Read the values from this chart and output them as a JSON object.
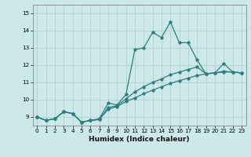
{
  "xlabel": "Humidex (Indice chaleur)",
  "x": [
    0,
    1,
    2,
    3,
    4,
    5,
    6,
    7,
    8,
    9,
    10,
    11,
    12,
    13,
    14,
    15,
    16,
    17,
    18,
    19,
    20,
    21,
    22,
    23
  ],
  "line_max": [
    9.0,
    8.8,
    8.9,
    9.3,
    9.2,
    8.7,
    8.8,
    8.9,
    9.8,
    9.7,
    10.3,
    12.9,
    13.0,
    13.9,
    13.6,
    14.5,
    13.3,
    13.3,
    12.3,
    11.5,
    11.55,
    12.1,
    11.6,
    11.55
  ],
  "line_avg": [
    9.0,
    8.8,
    8.9,
    9.3,
    9.2,
    8.7,
    8.8,
    8.85,
    9.55,
    9.65,
    10.05,
    10.45,
    10.75,
    11.0,
    11.2,
    11.45,
    11.6,
    11.75,
    11.9,
    11.5,
    11.55,
    11.65,
    11.6,
    11.55
  ],
  "line_min": [
    9.0,
    8.8,
    8.9,
    9.3,
    9.2,
    8.7,
    8.8,
    8.85,
    9.45,
    9.6,
    9.9,
    10.1,
    10.35,
    10.55,
    10.75,
    10.95,
    11.1,
    11.25,
    11.4,
    11.5,
    11.55,
    11.6,
    11.6,
    11.55
  ],
  "line_color": "#2e7d7d",
  "bg_color": "#cce8e8",
  "grid_color": "#aacece",
  "ylim": [
    8.5,
    15.5
  ],
  "yticks": [
    9,
    10,
    11,
    12,
    13,
    14,
    15
  ],
  "xticks": [
    0,
    1,
    2,
    3,
    4,
    5,
    6,
    7,
    8,
    9,
    10,
    11,
    12,
    13,
    14,
    15,
    16,
    17,
    18,
    19,
    20,
    21,
    22,
    23
  ],
  "xlabel_fontsize": 6.5,
  "tick_fontsize": 5.2,
  "lw": 0.9,
  "ms": 2.8
}
